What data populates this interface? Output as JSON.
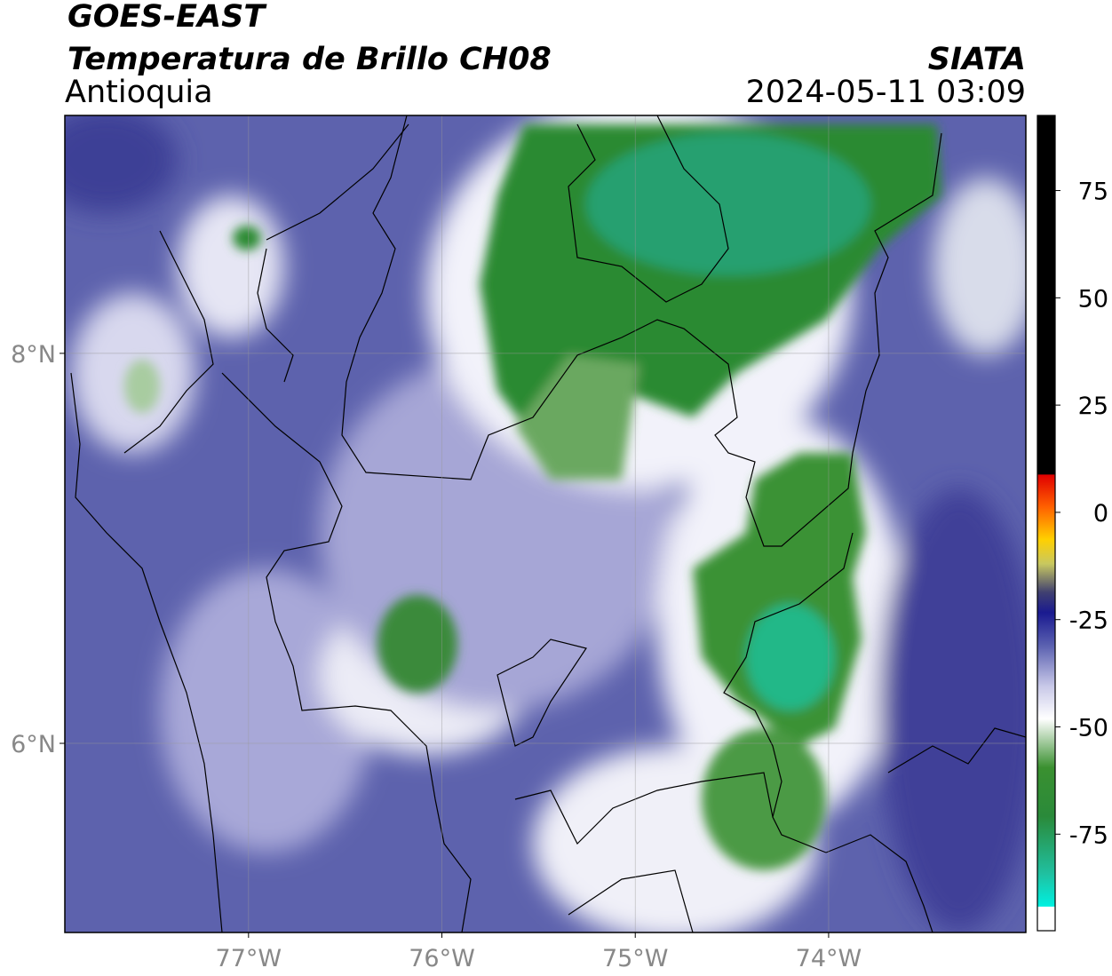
{
  "header": {
    "title": "GOES-EAST",
    "subtitle": "Temperatura de Brillo CH08",
    "region": "Antioquia",
    "source": "SIATA",
    "timestamp": "2024-05-11 03:09"
  },
  "map": {
    "xlim": [
      -77.95,
      -72.98
    ],
    "ylim": [
      5.03,
      9.22
    ],
    "xticks": [
      {
        "value": -77,
        "label": "77°W"
      },
      {
        "value": -76,
        "label": "76°W"
      },
      {
        "value": -75,
        "label": "75°W"
      },
      {
        "value": -74,
        "label": "74°W"
      }
    ],
    "yticks": [
      {
        "value": 6,
        "label": "6°N"
      },
      {
        "value": 8,
        "label": "8°N"
      }
    ],
    "grid": true
  },
  "colorbar": {
    "lim": [
      -97.5,
      92.5
    ],
    "ticks": [
      75,
      50,
      25,
      0,
      -25,
      -50,
      -75
    ]
  }
}
